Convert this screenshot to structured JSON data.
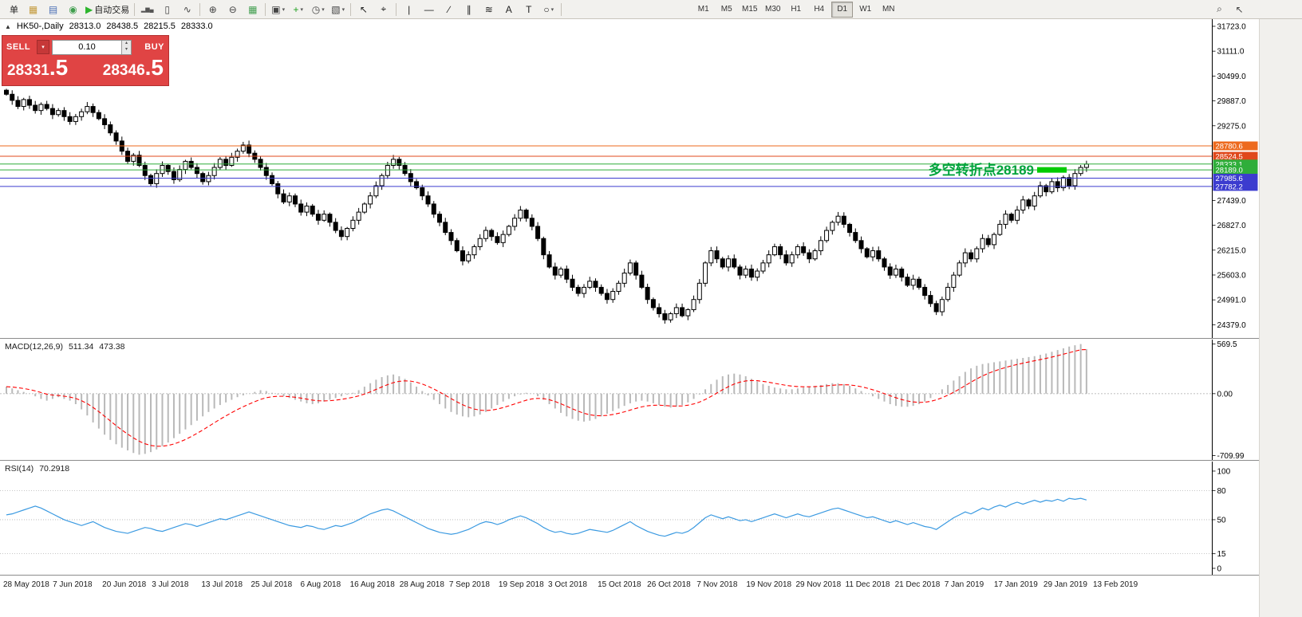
{
  "toolbar": {
    "items": [
      {
        "name": "new-order-button",
        "label": "单"
      },
      {
        "name": "chart-profile-icon",
        "glyph": "▦",
        "color": "#c49a3c"
      },
      {
        "name": "market-watch-icon",
        "glyph": "▤",
        "color": "#4a6fb5"
      },
      {
        "name": "navigator-icon",
        "glyph": "◉",
        "color": "#3f9e4d"
      },
      {
        "name": "autotrading-button",
        "glyph": "▶",
        "color": "#2db52d",
        "label": "自动交易"
      },
      {
        "type": "sep"
      },
      {
        "name": "bar-chart-icon",
        "glyph": "▂▆▄",
        "color": "#555",
        "small": true
      },
      {
        "name": "candlestick-chart-icon",
        "glyph": "▯",
        "color": "#444"
      },
      {
        "name": "line-chart-icon",
        "glyph": "∿",
        "color": "#444"
      },
      {
        "type": "sep"
      },
      {
        "name": "zoom-in-icon",
        "glyph": "⊕",
        "color": "#444"
      },
      {
        "name": "zoom-out-icon",
        "glyph": "⊖",
        "color": "#444"
      },
      {
        "name": "tile-windows-icon",
        "glyph": "▦",
        "color": "#3f9e4d"
      },
      {
        "type": "sep"
      },
      {
        "name": "charts-list-icon",
        "glyph": "▣",
        "color": "#444",
        "caret": true
      },
      {
        "name": "indicators-icon",
        "glyph": "+",
        "color": "#1fa01f",
        "caret": true
      },
      {
        "name": "periods-icon",
        "glyph": "◷",
        "color": "#444",
        "caret": true
      },
      {
        "name": "templates-icon",
        "glyph": "▧",
        "color": "#444",
        "caret": true
      },
      {
        "type": "sep"
      },
      {
        "name": "cursor-icon",
        "glyph": "↖",
        "color": "#222"
      },
      {
        "name": "crosshair-icon",
        "glyph": "⌖",
        "color": "#222"
      },
      {
        "type": "sep"
      },
      {
        "name": "vertical-line-icon",
        "glyph": "|",
        "color": "#222"
      },
      {
        "name": "horizontal-line-icon",
        "glyph": "—",
        "color": "#222"
      },
      {
        "name": "trendline-icon",
        "glyph": "∕",
        "color": "#222"
      },
      {
        "name": "channel-icon",
        "glyph": "∥",
        "color": "#222"
      },
      {
        "name": "fibonacci-icon",
        "glyph": "≋",
        "color": "#222"
      },
      {
        "name": "text-icon",
        "glyph": "A",
        "color": "#222"
      },
      {
        "name": "label-icon",
        "glyph": "T",
        "color": "#222"
      },
      {
        "name": "shapes-icon",
        "glyph": "○",
        "color": "#222",
        "caret": true
      },
      {
        "type": "sep"
      },
      {
        "type": "gap",
        "w": 160
      }
    ],
    "timeframes": [
      "M1",
      "M5",
      "M15",
      "M30",
      "H1",
      "H4",
      "D1",
      "W1",
      "MN"
    ],
    "active_timeframe": "D1",
    "right_items": [
      {
        "name": "search-icon",
        "glyph": "⌕"
      },
      {
        "name": "quick-cursor-icon",
        "glyph": "↖"
      }
    ]
  },
  "chart_header": {
    "collapse_icon": "▲",
    "symbol_period": "HK50-,Daily",
    "open": "28313.0",
    "high": "28438.5",
    "low": "28215.5",
    "close": "28333.0"
  },
  "one_click": {
    "sell_label": "SELL",
    "buy_label": "BUY",
    "volume": "0.10",
    "sell_price_main": "28331",
    "sell_price_big": ".5",
    "buy_price_main": "28346",
    "buy_price_big": ".5"
  },
  "time_axis": {
    "labels": [
      "28 May 2018",
      "7 Jun 2018",
      "20 Jun 2018",
      "3 Jul 2018",
      "13 Jul 2018",
      "25 Jul 2018",
      "6 Aug 2018",
      "16 Aug 2018",
      "28 Aug 2018",
      "7 Sep 2018",
      "19 Sep 2018",
      "3 Oct 2018",
      "15 Oct 2018",
      "26 Oct 2018",
      "7 Nov 2018",
      "19 Nov 2018",
      "29 Nov 2018",
      "11 Dec 2018",
      "21 Dec 2018",
      "7 Jan 2019",
      "17 Jan 2019",
      "29 Jan 2019",
      "13 Feb 2019"
    ]
  },
  "chart_data": [
    {
      "type": "candlestick",
      "title": "HK50-,Daily",
      "ohlc": {
        "open": 28313.0,
        "high": 28438.5,
        "low": 28215.5,
        "close": 28333.0
      },
      "ylim": [
        24053,
        31899
      ],
      "first_open": 30150,
      "closes": [
        30050,
        29900,
        29750,
        29920,
        29780,
        29650,
        29800,
        29700,
        29550,
        29650,
        29500,
        29380,
        29500,
        29620,
        29750,
        29600,
        29450,
        29300,
        29100,
        28900,
        28650,
        28400,
        28550,
        28300,
        28050,
        27850,
        28100,
        28300,
        28150,
        27950,
        28200,
        28400,
        28250,
        28100,
        27900,
        28050,
        28250,
        28450,
        28300,
        28500,
        28650,
        28800,
        28600,
        28450,
        28250,
        28050,
        27850,
        27600,
        27400,
        27550,
        27350,
        27150,
        27300,
        27100,
        26950,
        27100,
        26900,
        26700,
        26550,
        26750,
        26950,
        27150,
        27350,
        27550,
        27800,
        28050,
        28300,
        28450,
        28300,
        28100,
        27900,
        27750,
        27550,
        27350,
        27100,
        26900,
        26650,
        26450,
        26200,
        25950,
        26100,
        26300,
        26500,
        26700,
        26550,
        26400,
        26600,
        26800,
        27000,
        27200,
        27000,
        26800,
        26500,
        26100,
        25800,
        25600,
        25750,
        25500,
        25300,
        25150,
        25300,
        25450,
        25300,
        25150,
        25000,
        25200,
        25400,
        25650,
        25900,
        25600,
        25300,
        25000,
        24800,
        24650,
        24500,
        24650,
        24800,
        24600,
        24750,
        25000,
        25400,
        25900,
        26200,
        26000,
        25800,
        26000,
        25800,
        25600,
        25750,
        25550,
        25700,
        25900,
        26100,
        26300,
        26100,
        25900,
        26100,
        26300,
        26150,
        26000,
        26200,
        26450,
        26700,
        26900,
        27050,
        26850,
        26650,
        26450,
        26250,
        26050,
        26200,
        26000,
        25800,
        25600,
        25750,
        25550,
        25350,
        25500,
        25300,
        25100,
        24900,
        24700,
        25000,
        25300,
        25600,
        25900,
        26150,
        26000,
        26250,
        26500,
        26350,
        26600,
        26850,
        27100,
        26950,
        27200,
        27450,
        27300,
        27550,
        27800,
        27650,
        27900,
        27750,
        28000,
        27800,
        28100,
        28250,
        28333
      ],
      "y_ticks": [
        {
          "label": "31723.0",
          "price": 31723
        },
        {
          "label": "31111.0",
          "price": 31111
        },
        {
          "label": "30499.0",
          "price": 30499
        },
        {
          "label": "29887.0",
          "price": 29887
        },
        {
          "label": "29275.0",
          "price": 29275
        },
        {
          "label": "27439.0",
          "price": 27439
        },
        {
          "label": "26827.0",
          "price": 26827
        },
        {
          "label": "26215.0",
          "price": 26215
        },
        {
          "label": "25603.0",
          "price": 25603
        },
        {
          "label": "24991.0",
          "price": 24991
        },
        {
          "label": "24379.0",
          "price": 24379
        }
      ],
      "levels": [
        {
          "label": "28780.6",
          "price": 28780.6,
          "color": "#ed6a1e"
        },
        {
          "label": "28524.5",
          "price": 28524.5,
          "color": "#e0481c"
        },
        {
          "label": "28333.1",
          "price": 28333.1,
          "color": "#2fae3a"
        },
        {
          "label": "28189.0",
          "price": 28189.0,
          "color": "#2fae3a"
        },
        {
          "label": "27985.6",
          "price": 27985.6,
          "color": "#3c3ccf"
        },
        {
          "label": "27782.2",
          "price": 27782.2,
          "color": "#3c3ccf"
        }
      ],
      "annotation": {
        "text": "多空转折点28189",
        "price": 28189,
        "text_color": "#00a33c",
        "bar_color": "#00cc00"
      }
    },
    {
      "type": "bar",
      "name": "MACD",
      "label": "MACD(12,26,9)",
      "value_main": "511.34",
      "value_signal": "473.38",
      "ylim": [
        -760,
        620
      ],
      "histogram_color": "#b9b9b9",
      "signal_color": "#ff0000",
      "y_ticks": [
        {
          "label": "569.5",
          "v": 569.5
        },
        {
          "label": "0.00",
          "v": 0
        },
        {
          "label": "-709.99",
          "v": -709.99
        }
      ],
      "values": [
        80,
        60,
        40,
        20,
        0,
        -30,
        -60,
        -80,
        -60,
        -40,
        -60,
        -80,
        -120,
        -180,
        -250,
        -330,
        -400,
        -470,
        -530,
        -580,
        -620,
        -650,
        -680,
        -700,
        -690,
        -670,
        -640,
        -600,
        -560,
        -510,
        -460,
        -410,
        -360,
        -310,
        -260,
        -210,
        -170,
        -130,
        -100,
        -70,
        -40,
        -20,
        0,
        20,
        40,
        30,
        10,
        -10,
        -30,
        -50,
        -70,
        -90,
        -110,
        -120,
        -110,
        -90,
        -70,
        -50,
        -30,
        -10,
        10,
        40,
        80,
        120,
        160,
        190,
        210,
        220,
        200,
        170,
        130,
        80,
        30,
        -20,
        -70,
        -120,
        -170,
        -210,
        -240,
        -260,
        -270,
        -260,
        -240,
        -210,
        -170,
        -130,
        -90,
        -60,
        -30,
        -10,
        10,
        0,
        -30,
        -70,
        -120,
        -170,
        -220,
        -260,
        -290,
        -310,
        -320,
        -310,
        -290,
        -260,
        -230,
        -200,
        -170,
        -140,
        -110,
        -90,
        -80,
        -90,
        -110,
        -130,
        -150,
        -160,
        -150,
        -130,
        -100,
        -60,
        -10,
        50,
        110,
        160,
        200,
        220,
        230,
        220,
        200,
        170,
        140,
        110,
        90,
        70,
        60,
        50,
        50,
        60,
        70,
        80,
        90,
        100,
        110,
        120,
        120,
        110,
        90,
        60,
        30,
        0,
        -30,
        -60,
        -90,
        -120,
        -140,
        -150,
        -150,
        -140,
        -120,
        -90,
        -50,
        0,
        50,
        100,
        150,
        200,
        250,
        290,
        320,
        340,
        350,
        360,
        370,
        380,
        390,
        400,
        410,
        420,
        430,
        445,
        460,
        480,
        500,
        520,
        540,
        555,
        569,
        511
      ]
    },
    {
      "type": "line",
      "name": "RSI",
      "label": "RSI(14)",
      "value": "70.2918",
      "ylim": [
        -6.6,
        109.8
      ],
      "line_color": "#3b9ae1",
      "level_lines": [
        80,
        50,
        15
      ],
      "y_ticks": [
        {
          "label": "100",
          "v": 100
        },
        {
          "label": "80",
          "v": 80
        },
        {
          "label": "50",
          "v": 50
        },
        {
          "label": "15",
          "v": 15
        },
        {
          "label": "0",
          "v": 0
        }
      ],
      "values": [
        55,
        56,
        58,
        60,
        62,
        64,
        62,
        59,
        56,
        53,
        50,
        48,
        46,
        44,
        46,
        48,
        45,
        42,
        40,
        38,
        37,
        36,
        38,
        40,
        42,
        41,
        39,
        38,
        40,
        42,
        44,
        46,
        45,
        43,
        45,
        47,
        49,
        51,
        50,
        52,
        54,
        56,
        58,
        56,
        54,
        52,
        50,
        48,
        46,
        44,
        43,
        42,
        44,
        43,
        41,
        40,
        42,
        44,
        43,
        45,
        47,
        50,
        53,
        56,
        58,
        60,
        61,
        59,
        56,
        53,
        50,
        47,
        44,
        41,
        39,
        37,
        36,
        35,
        36,
        38,
        40,
        43,
        46,
        48,
        47,
        45,
        47,
        50,
        52,
        54,
        52,
        49,
        46,
        42,
        39,
        37,
        38,
        36,
        35,
        36,
        38,
        40,
        39,
        38,
        37,
        39,
        42,
        45,
        48,
        44,
        41,
        38,
        36,
        34,
        33,
        35,
        37,
        36,
        38,
        42,
        47,
        52,
        55,
        53,
        51,
        53,
        51,
        49,
        50,
        48,
        50,
        52,
        54,
        56,
        54,
        52,
        54,
        56,
        54,
        53,
        55,
        57,
        59,
        61,
        62,
        60,
        58,
        56,
        54,
        52,
        53,
        51,
        49,
        47,
        49,
        47,
        45,
        47,
        45,
        43,
        42,
        40,
        44,
        48,
        52,
        55,
        58,
        56,
        59,
        62,
        60,
        63,
        65,
        63,
        66,
        68,
        66,
        68,
        70,
        68,
        70,
        69,
        71,
        69,
        72,
        71,
        72,
        70.29
      ]
    }
  ]
}
